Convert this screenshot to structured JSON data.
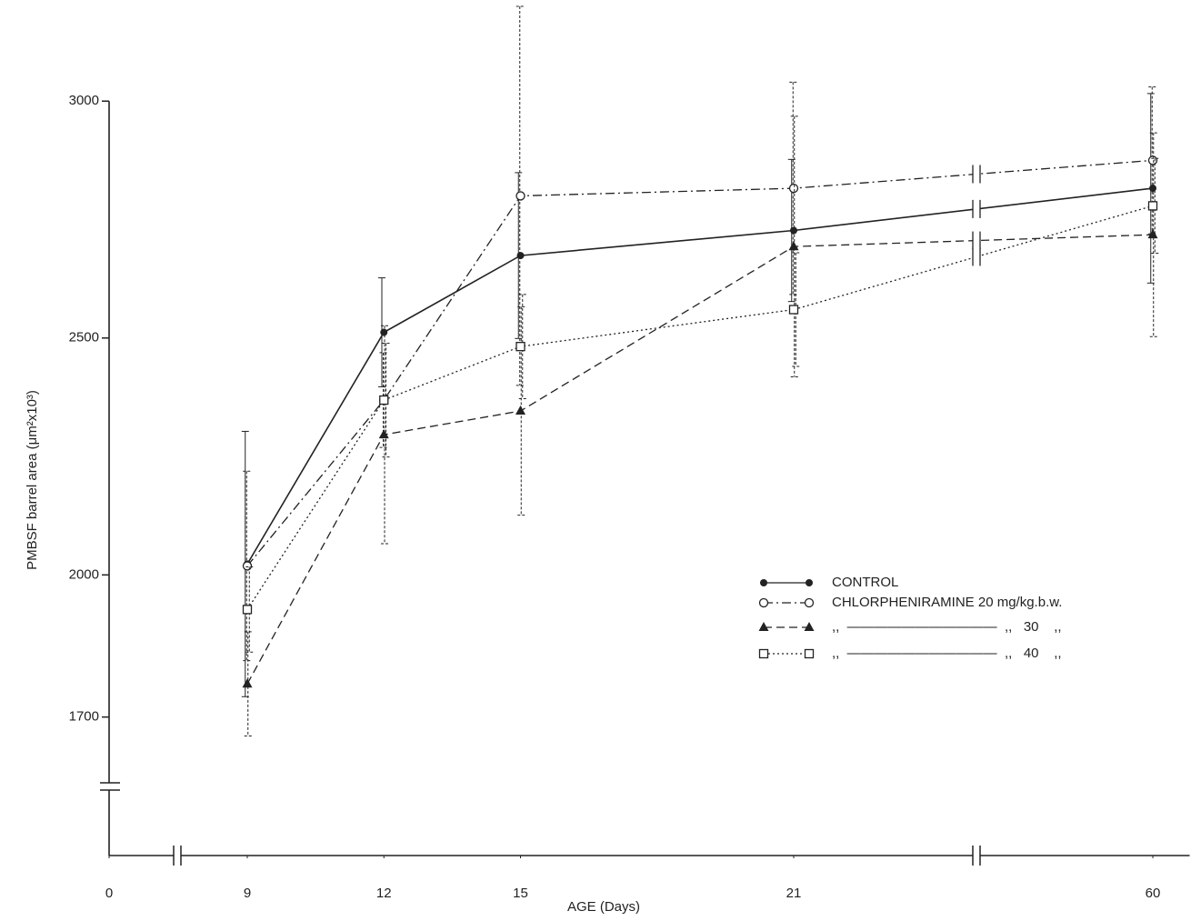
{
  "chart_data": {
    "type": "line",
    "x_label": "AGE (Days)",
    "y_label": "PMBSF barrel area (μm²x10³)",
    "x": [
      9,
      12,
      15,
      21,
      60
    ],
    "xlim": [
      0,
      64
    ],
    "xticks": [
      0,
      9,
      12,
      15,
      21,
      60
    ],
    "ylim": [
      1400,
      3200
    ],
    "yticks": [
      1700,
      2000,
      2500,
      3000
    ],
    "grid": false,
    "series": [
      {
        "name": "CONTROL",
        "color": "#222222",
        "marker": "filled-circle",
        "line_style": "solid",
        "values": [
          2023,
          2512,
          2674,
          2727,
          2816
        ],
        "errors": [
          280,
          115,
          175,
          150,
          200
        ]
      },
      {
        "name": "CHLORPHENIRAMINE 20 mg/kg.b.w.",
        "color": "#222222",
        "marker": "open-circle",
        "line_style": "dashdot",
        "values": [
          2019,
          2369,
          2800,
          2816,
          2875
        ],
        "errors": [
          200,
          100,
          400,
          224,
          155
        ]
      },
      {
        "name": ",,  ———————————  ,,   30    ,,",
        "color": "#222222",
        "marker": "filled-triangle",
        "line_style": "dashed",
        "values": [
          1770,
          2296,
          2346,
          2693,
          2718
        ],
        "errors": [
          110,
          230,
          220,
          275,
          215
        ]
      },
      {
        "name": ",,  ———————————  ,,   40    ,,",
        "color": "#222222",
        "marker": "open-square",
        "line_style": "dotted",
        "values": [
          1927,
          2369,
          2482,
          2560,
          2779
        ],
        "errors": [
          90,
          120,
          110,
          120,
          100
        ]
      }
    ]
  }
}
